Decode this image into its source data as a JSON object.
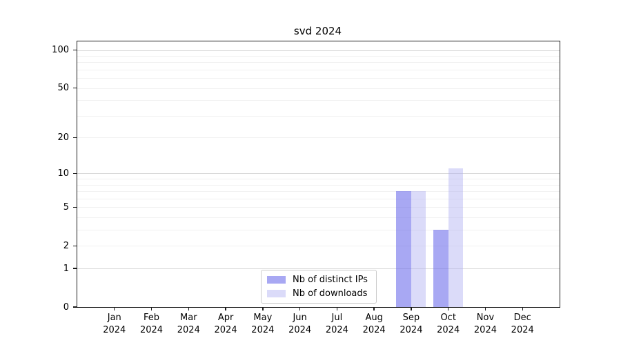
{
  "chart_data": {
    "type": "bar",
    "title": "svd 2024",
    "categories": [
      "Jan 2024",
      "Feb 2024",
      "Mar 2024",
      "Apr 2024",
      "May 2024",
      "Jun 2024",
      "Jul 2024",
      "Aug 2024",
      "Sep 2024",
      "Oct 2024",
      "Nov 2024",
      "Dec 2024"
    ],
    "series": [
      {
        "name": "Nb of distinct IPs",
        "color": "rgba(105,105,235,0.58)",
        "values": [
          0,
          0,
          0,
          0,
          0,
          0,
          0,
          0,
          7,
          3,
          0,
          0
        ]
      },
      {
        "name": "Nb of downloads",
        "color": "rgba(175,175,242,0.45)",
        "values": [
          0,
          0,
          0,
          0,
          0,
          0,
          0,
          0,
          7,
          11,
          0,
          0
        ]
      }
    ],
    "y_scale": "log1p",
    "ylim": [
      0,
      117
    ],
    "y_ticks": [
      0,
      1,
      2,
      5,
      10,
      20,
      50,
      100
    ],
    "grid_major": [
      1,
      10,
      100
    ],
    "grid_minor": [
      2,
      3,
      4,
      5,
      6,
      7,
      8,
      9,
      20,
      30,
      40,
      50,
      60,
      70,
      80,
      90
    ],
    "grid": "on",
    "legend_position": "lower center",
    "xlabel": "",
    "ylabel": ""
  }
}
